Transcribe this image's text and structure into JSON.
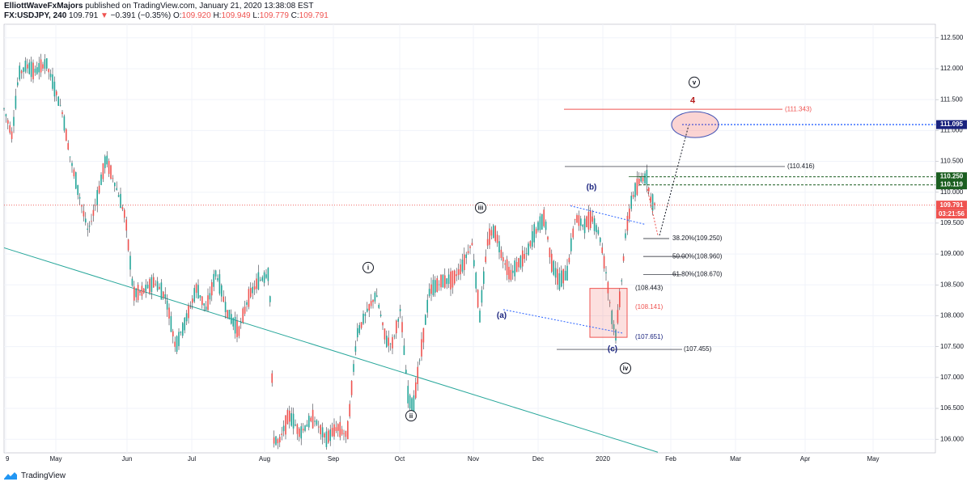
{
  "header": {
    "author": "ElliottWaveFxMajors",
    "published": "published on TradingView.com, January 21, 2020 13:38:08 EST",
    "symbol": "FX:USDJPY, 240",
    "last": "109.791",
    "arrow": "▼",
    "change": "−0.391 (−0.35%)",
    "o_label": "O:",
    "o_value": "109.920",
    "h_label": "H:",
    "h_value": "109.949",
    "l_label": "L:",
    "l_value": "109.779",
    "c_label": "C:",
    "c_value": "109.791"
  },
  "footer": {
    "brand": "TradingView",
    "logo_icon": "tradingview-logo-icon"
  },
  "colors": {
    "up": "#26a69a",
    "down": "#ef5350",
    "wave_blue": "#1a237e",
    "dotted_blue": "#2962ff",
    "green_level": "#1b5e20",
    "trend": "#26a69a",
    "red_line": "#ef5350"
  },
  "chart_data": {
    "type": "candlestick",
    "symbol": "FX:USDJPY",
    "interval": "240",
    "price_axis": {
      "ticks": [
        "112.500",
        "112.000",
        "111.500",
        "111.000",
        "110.500",
        "110.000",
        "109.500",
        "109.000",
        "108.500",
        "108.000",
        "107.500",
        "107.000",
        "106.500",
        "106.000"
      ],
      "range": [
        105.78,
        112.72
      ]
    },
    "time_axis": {
      "ticks": [
        "9",
        "May",
        "Jun",
        "Jul",
        "Aug",
        "Sep",
        "Oct",
        "Nov",
        "Dec",
        "2020",
        "Feb",
        "Mar",
        "Apr",
        "May"
      ]
    },
    "price_tags": [
      {
        "value": "111.095",
        "kind": "blue"
      },
      {
        "value": "110.250",
        "kind": "green"
      },
      {
        "value": "110.119",
        "kind": "green"
      },
      {
        "value": "109.791",
        "kind": "red"
      },
      {
        "value": "03:21:56",
        "kind": "red"
      }
    ],
    "level_labels": [
      {
        "text": "(111.343)",
        "price": 111.343,
        "color": "red"
      },
      {
        "text": "(110.416)",
        "price": 110.416,
        "color": "dark"
      },
      {
        "text": "38.20%(109.250)",
        "price": 109.25,
        "color": "dark"
      },
      {
        "text": "50.00%(108.960)",
        "price": 108.96,
        "color": "dark"
      },
      {
        "text": "61.80%(108.670)",
        "price": 108.67,
        "color": "dark"
      },
      {
        "text": "(108.443)",
        "price": 108.443,
        "color": "dark"
      },
      {
        "text": "(108.141)",
        "price": 108.141,
        "color": "red"
      },
      {
        "text": "(107.651)",
        "price": 107.651,
        "color": "blue"
      },
      {
        "text": "(107.455)",
        "price": 107.455,
        "color": "dark"
      }
    ],
    "wave_labels": [
      {
        "text": "i",
        "style": "circled",
        "price": 108.78
      },
      {
        "text": "ii",
        "style": "circled",
        "price": 106.38
      },
      {
        "text": "iii",
        "style": "circled",
        "price": 109.75
      },
      {
        "text": "iv",
        "style": "circled",
        "price": 107.15
      },
      {
        "text": "v",
        "style": "circled",
        "price": 111.78
      },
      {
        "text": "4",
        "style": "red",
        "price": 111.48
      },
      {
        "text": "(a)",
        "style": "blue",
        "price": 108.0
      },
      {
        "text": "(b)",
        "style": "blue",
        "price": 110.08
      },
      {
        "text": "(c)",
        "style": "blue",
        "price": 107.46
      }
    ],
    "path_points": [
      {
        "t": 0,
        "p": 111.35
      },
      {
        "t": 10,
        "p": 110.92
      },
      {
        "t": 18,
        "p": 111.9
      },
      {
        "t": 28,
        "p": 112.05
      },
      {
        "t": 38,
        "p": 111.95
      },
      {
        "t": 52,
        "p": 112.1
      },
      {
        "t": 62,
        "p": 111.7
      },
      {
        "t": 72,
        "p": 111.3
      },
      {
        "t": 82,
        "p": 110.55
      },
      {
        "t": 92,
        "p": 110.0
      },
      {
        "t": 104,
        "p": 109.35
      },
      {
        "t": 114,
        "p": 109.85
      },
      {
        "t": 126,
        "p": 110.55
      },
      {
        "t": 138,
        "p": 110.1
      },
      {
        "t": 150,
        "p": 109.6
      },
      {
        "t": 160,
        "p": 108.35
      },
      {
        "t": 172,
        "p": 108.4
      },
      {
        "t": 186,
        "p": 108.55
      },
      {
        "t": 200,
        "p": 108.3
      },
      {
        "t": 212,
        "p": 107.5
      },
      {
        "t": 224,
        "p": 107.9
      },
      {
        "t": 238,
        "p": 108.45
      },
      {
        "t": 250,
        "p": 108.1
      },
      {
        "t": 262,
        "p": 108.7
      },
      {
        "t": 276,
        "p": 108.05
      },
      {
        "t": 290,
        "p": 107.75
      },
      {
        "t": 302,
        "p": 108.3
      },
      {
        "t": 314,
        "p": 108.55
      },
      {
        "t": 328,
        "p": 108.7
      },
      {
        "t": 333,
        "p": 106.0
      },
      {
        "t": 340,
        "p": 105.95
      },
      {
        "t": 352,
        "p": 106.4
      },
      {
        "t": 366,
        "p": 106.1
      },
      {
        "t": 382,
        "p": 106.35
      },
      {
        "t": 398,
        "p": 106.0
      },
      {
        "t": 412,
        "p": 106.2
      },
      {
        "t": 424,
        "p": 106.05
      },
      {
        "t": 436,
        "p": 107.7
      },
      {
        "t": 448,
        "p": 108.05
      },
      {
        "t": 460,
        "p": 108.35
      },
      {
        "t": 472,
        "p": 107.6
      },
      {
        "t": 480,
        "p": 107.55
      },
      {
        "t": 490,
        "p": 108.1
      },
      {
        "t": 500,
        "p": 106.6
      },
      {
        "t": 506,
        "p": 106.55
      },
      {
        "t": 514,
        "p": 107.3
      },
      {
        "t": 526,
        "p": 108.4
      },
      {
        "t": 540,
        "p": 108.55
      },
      {
        "t": 556,
        "p": 108.6
      },
      {
        "t": 568,
        "p": 108.85
      },
      {
        "t": 578,
        "p": 109.2
      },
      {
        "t": 588,
        "p": 108.0
      },
      {
        "t": 598,
        "p": 109.25
      },
      {
        "t": 606,
        "p": 109.4
      },
      {
        "t": 616,
        "p": 108.95
      },
      {
        "t": 626,
        "p": 108.65
      },
      {
        "t": 636,
        "p": 108.85
      },
      {
        "t": 646,
        "p": 109.0
      },
      {
        "t": 656,
        "p": 109.35
      },
      {
        "t": 668,
        "p": 109.6
      },
      {
        "t": 676,
        "p": 108.9
      },
      {
        "t": 686,
        "p": 108.55
      },
      {
        "t": 696,
        "p": 108.7
      },
      {
        "t": 706,
        "p": 109.6
      },
      {
        "t": 716,
        "p": 109.45
      },
      {
        "t": 726,
        "p": 109.6
      },
      {
        "t": 736,
        "p": 109.3
      },
      {
        "t": 744,
        "p": 108.7
      },
      {
        "t": 752,
        "p": 107.9
      },
      {
        "t": 756,
        "p": 107.7
      },
      {
        "t": 762,
        "p": 108.4
      },
      {
        "t": 768,
        "p": 109.3
      },
      {
        "t": 776,
        "p": 109.9
      },
      {
        "t": 786,
        "p": 110.2
      },
      {
        "t": 794,
        "p": 110.25
      },
      {
        "t": 800,
        "p": 109.85
      },
      {
        "t": 804,
        "p": 109.79
      }
    ],
    "grid": true
  }
}
